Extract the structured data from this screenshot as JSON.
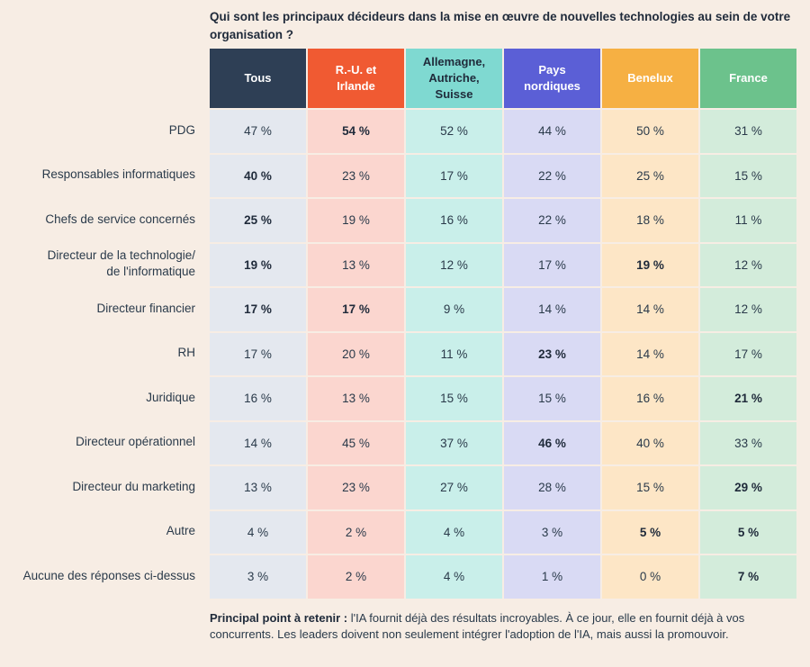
{
  "title": "Qui sont les principaux décideurs dans la mise en œuvre de nouvelles technologies au sein de votre organisation ?",
  "chart_data": {
    "type": "table",
    "columns": [
      {
        "label": "Tous",
        "header_bg": "#2e3f55",
        "header_fg": "#ffffff",
        "cell_bg": "#e4e8ef"
      },
      {
        "label": "R.-U. et\nIrlande",
        "header_bg": "#f05a32",
        "header_fg": "#ffffff",
        "cell_bg": "#fbd6cf"
      },
      {
        "label": "Allemagne,\nAutriche,\nSuisse",
        "header_bg": "#7fd9d1",
        "header_fg": "#1f2a3a",
        "cell_bg": "#c9efea"
      },
      {
        "label": "Pays\nnordiques",
        "header_bg": "#5b5fd6",
        "header_fg": "#ffffff",
        "cell_bg": "#d9daf4"
      },
      {
        "label": "Benelux",
        "header_bg": "#f6b043",
        "header_fg": "#ffffff",
        "cell_bg": "#fde6c6"
      },
      {
        "label": "France",
        "header_bg": "#6cc28c",
        "header_fg": "#ffffff",
        "cell_bg": "#d3ecdb"
      }
    ],
    "rows": [
      {
        "label": "PDG",
        "values": [
          "47 %",
          "54 %",
          "52 %",
          "44 %",
          "50 %",
          "31 %"
        ],
        "bold": [
          1
        ]
      },
      {
        "label": "Responsables informatiques",
        "values": [
          "40 %",
          "23 %",
          "17 %",
          "22 %",
          "25 %",
          "15 %"
        ],
        "bold": [
          0
        ]
      },
      {
        "label": "Chefs de service concernés",
        "values": [
          "25 %",
          "19 %",
          "16 %",
          "22 %",
          "18 %",
          "11 %"
        ],
        "bold": [
          0
        ]
      },
      {
        "label": "Directeur de la technologie/\nde l'informatique",
        "values": [
          "19 %",
          "13 %",
          "12 %",
          "17 %",
          "19 %",
          "12 %"
        ],
        "bold": [
          0,
          4
        ]
      },
      {
        "label": "Directeur financier",
        "values": [
          "17 %",
          "17 %",
          "9 %",
          "14 %",
          "14 %",
          "12 %"
        ],
        "bold": [
          0,
          1
        ]
      },
      {
        "label": "RH",
        "values": [
          "17 %",
          "20 %",
          "11 %",
          "23 %",
          "14 %",
          "17 %"
        ],
        "bold": [
          3
        ]
      },
      {
        "label": "Juridique",
        "values": [
          "16 %",
          "13 %",
          "15 %",
          "15 %",
          "16 %",
          "21 %"
        ],
        "bold": [
          5
        ]
      },
      {
        "label": "Directeur opérationnel",
        "values": [
          "14 %",
          "45 %",
          "37 %",
          "46 %",
          "40 %",
          "33 %"
        ],
        "bold": [
          3
        ]
      },
      {
        "label": "Directeur du marketing",
        "values": [
          "13 %",
          "23 %",
          "27 %",
          "28 %",
          "15 %",
          "29 %"
        ],
        "bold": [
          5
        ]
      },
      {
        "label": "Autre",
        "values": [
          "4 %",
          "2 %",
          "4 %",
          "3 %",
          "5 %",
          "5 %"
        ],
        "bold": [
          4,
          5
        ]
      },
      {
        "label": "Aucune des réponses ci-dessus",
        "values": [
          "3 %",
          "2 %",
          "4 %",
          "1 %",
          "0 %",
          "7 %"
        ],
        "bold": [
          5
        ]
      }
    ]
  },
  "footer": {
    "lead": "Principal point à retenir :",
    "text": " l'IA fournit déjà des résultats incroyables. À ce jour, elle en fournit déjà à vos concurrents. Les leaders doivent non seulement intégrer l'adoption de l'IA, mais aussi la promouvoir."
  }
}
